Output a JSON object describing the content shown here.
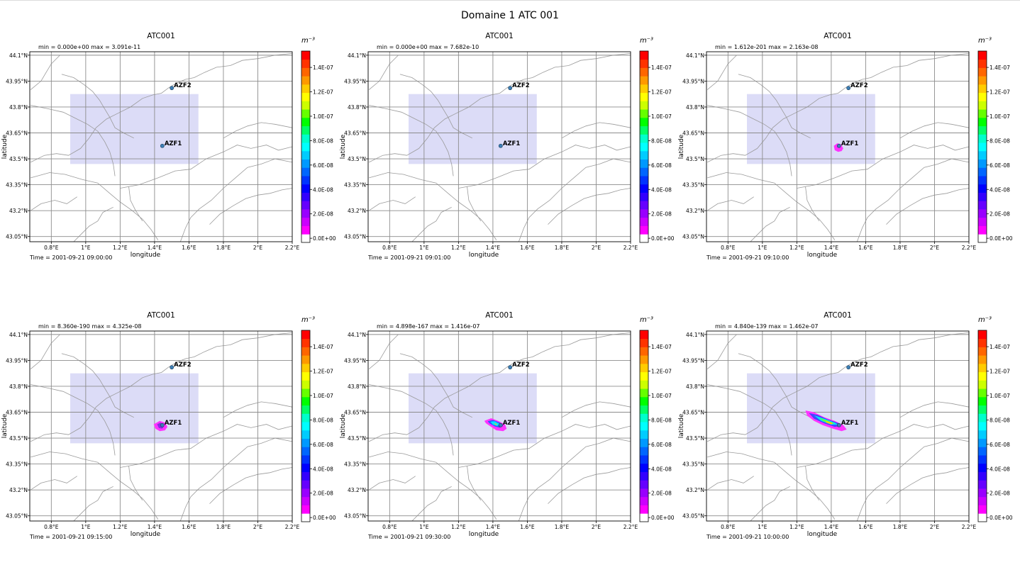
{
  "figure_title": "Domaine 1 ATC 001",
  "colors": {
    "release_box": "#dcdcf7",
    "grid": "#8c8c8c",
    "coastline": "#9a9a9a",
    "site_marker": "#3d7fb5"
  },
  "chart_data": {
    "type": "heatmap",
    "panels": [
      {
        "title": "ATC001",
        "min_max": "min = 0.000e+00  max = 3.091e-11",
        "time": "Time = 2001-09-21 09:00:00",
        "plume": 0
      },
      {
        "title": "ATC001",
        "min_max": "min = 0.000e+00  max = 7.682e-10",
        "time": "Time = 2001-09-21 09:01:00",
        "plume": 0
      },
      {
        "title": "ATC001",
        "min_max": "min = 1.612e-201  max = 2.163e-08",
        "time": "Time = 2001-09-21 09:10:00",
        "plume": 1
      },
      {
        "title": "ATC001",
        "min_max": "min = 8.360e-190  max = 4.325e-08",
        "time": "Time = 2001-09-21 09:15:00",
        "plume": 2
      },
      {
        "title": "ATC001",
        "min_max": "min = 4.898e-167  max = 1.416e-07",
        "time": "Time = 2001-09-21 09:30:00",
        "plume": 3
      },
      {
        "title": "ATC001",
        "min_max": "min = 4.840e-139  max = 1.462e-07",
        "time": "Time = 2001-09-21 10:00:00",
        "plume": 4
      }
    ],
    "xlabel": "longitude",
    "ylabel": "latitude",
    "xlim": [
      0.675,
      2.2
    ],
    "ylim": [
      43.02,
      44.12
    ],
    "x_ticks": [
      0.8,
      1.0,
      1.2,
      1.4,
      1.6,
      1.8,
      2.0,
      2.2
    ],
    "x_tick_labels": [
      "0.8°E",
      "1°E",
      "1.2°E",
      "1.4°E",
      "1.6°E",
      "1.8°E",
      "2°E",
      "2.2°E"
    ],
    "y_ticks": [
      43.05,
      43.2,
      43.35,
      43.5,
      43.65,
      43.8,
      43.95,
      44.1
    ],
    "y_tick_labels": [
      "43.05°N",
      "43.2°N",
      "43.35°N",
      "43.5°N",
      "43.65°N",
      "43.8°N",
      "43.95°N",
      "44.1°N"
    ],
    "grid": true,
    "release_box": {
      "lon": [
        0.91,
        1.655
      ],
      "lat": [
        43.47,
        43.875
      ]
    },
    "sites": [
      {
        "name": "AZF2",
        "lon": 1.5,
        "lat": 43.91
      },
      {
        "name": "AZF1",
        "lon": 1.445,
        "lat": 43.575
      }
    ],
    "colorbar": {
      "unit": "m⁻³",
      "min": 0,
      "max": 1.5e-07,
      "tick_values": [
        0,
        2e-08,
        4e-08,
        6e-08,
        8e-08,
        1e-07,
        1.2e-07,
        1.4e-07
      ],
      "tick_labels": [
        "0.0E+00",
        "2.0E-08",
        "4.0E-08",
        "6.0E-08",
        "8.0E-08",
        "1.0E-07",
        "1.2E-07",
        "1.4E-07"
      ]
    }
  }
}
